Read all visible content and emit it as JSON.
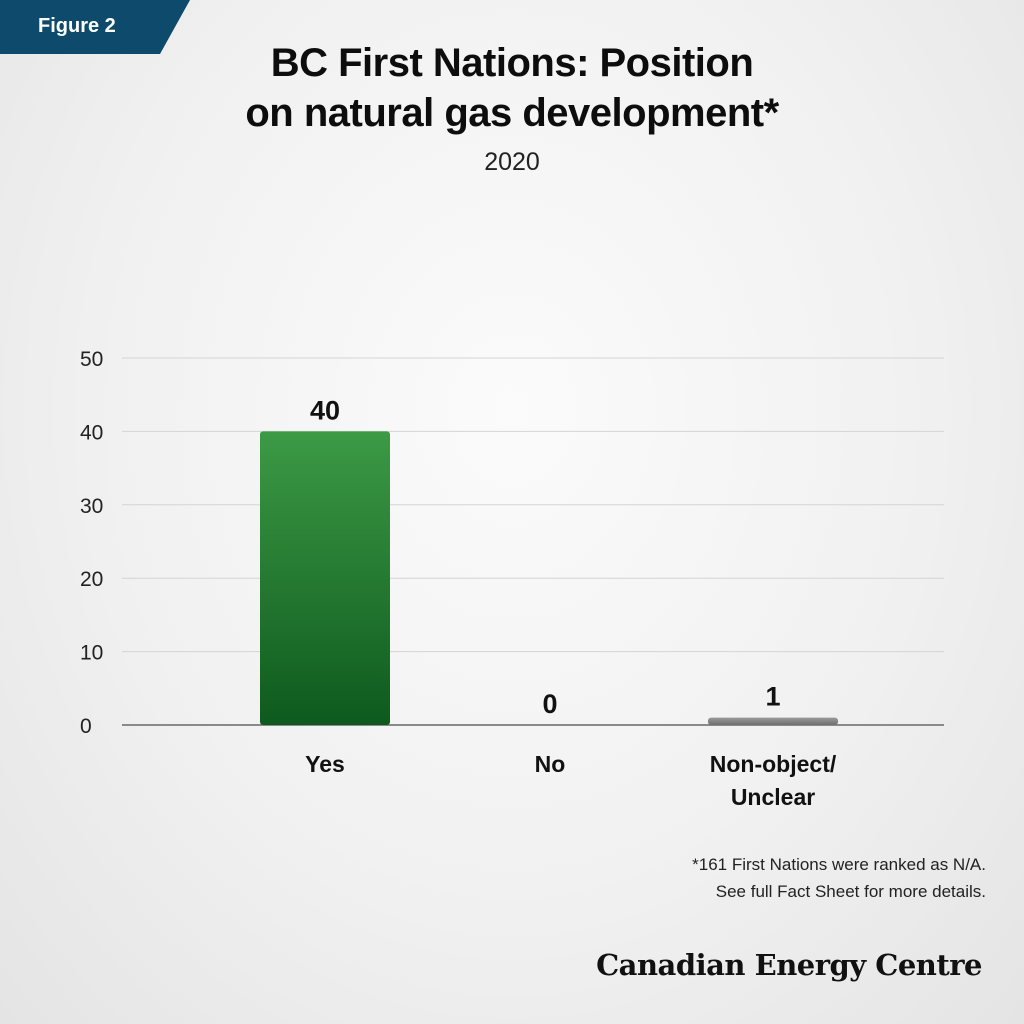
{
  "badge": {
    "label": "Figure 2",
    "color": "#0e4a6b"
  },
  "title_lines": [
    "BC First Nations: Position",
    "on natural gas development*"
  ],
  "subtitle": "2020",
  "chart_data": {
    "type": "bar",
    "categories": [
      [
        "Yes"
      ],
      [
        "No"
      ],
      [
        "Non-object/",
        "Unclear"
      ]
    ],
    "values": [
      40,
      0,
      1
    ],
    "data_labels": [
      "40",
      "0",
      "1"
    ],
    "colors": [
      "#2b8a3e",
      "#9a9a9a",
      "#7d7d7d"
    ],
    "ylim": [
      0,
      50
    ],
    "yticks": [
      0,
      10,
      20,
      30,
      40,
      50
    ],
    "grid": true,
    "xlabel": "",
    "ylabel": ""
  },
  "footnote": [
    "*161 First Nations were ranked as N/A.",
    "See full Fact Sheet for more details."
  ],
  "brand": "Canadian Energy Centre"
}
